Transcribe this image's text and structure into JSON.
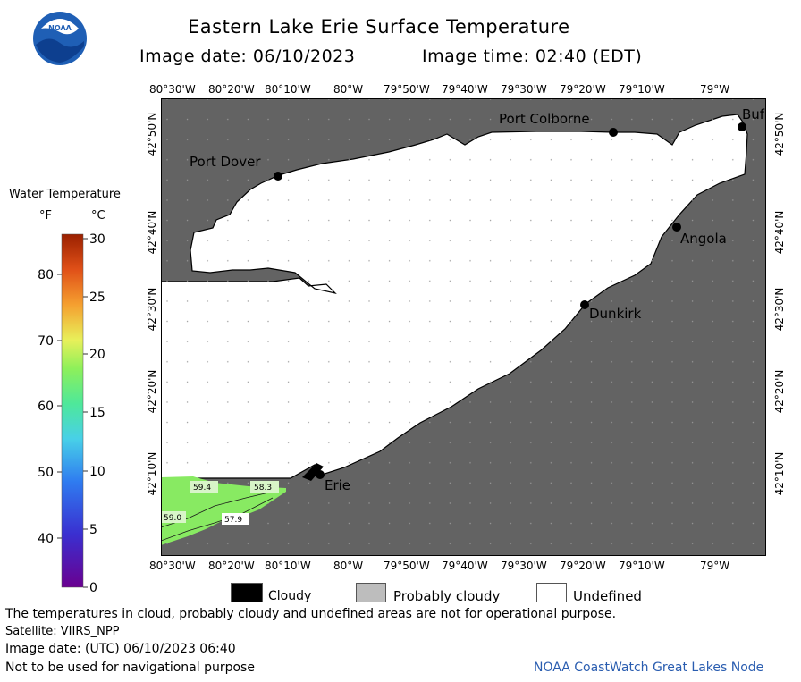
{
  "logo": {
    "text": "NOAA"
  },
  "title": "Eastern Lake Erie Surface Temperature",
  "image_date_label": "Image date: 06/10/2023",
  "image_time_label": "Image time: 02:40 (EDT)",
  "colorbar": {
    "title": "Water Temperature",
    "unit_f": "°F",
    "unit_c": "°C",
    "f_ticks": [
      "80",
      "70",
      "60",
      "50",
      "40"
    ],
    "c_ticks": [
      "30",
      "25",
      "20",
      "15",
      "10",
      "5",
      "0"
    ]
  },
  "axes": {
    "lon_ticks": [
      "80°30'W",
      "80°20'W",
      "80°10'W",
      "80°W",
      "79°50'W",
      "79°40'W",
      "79°30'W",
      "79°20'W",
      "79°10'W",
      "79°W"
    ],
    "lat_ticks": [
      "42°50'N",
      "42°40'N",
      "42°30'N",
      "42°20'N",
      "42°10'N"
    ]
  },
  "places": [
    {
      "name": "Port Dover"
    },
    {
      "name": "Port Colborne"
    },
    {
      "name": "Buf"
    },
    {
      "name": "Angola"
    },
    {
      "name": "Dunkirk"
    },
    {
      "name": "Erie"
    }
  ],
  "isotherm_labels": [
    "59.4",
    "58.3",
    "59.0",
    "57.9"
  ],
  "legend": {
    "cloudy": "Cloudy",
    "probably_cloudy": "Probably cloudy",
    "undefined": "Undefined"
  },
  "footer": {
    "disclaimer": "The temperatures in cloud, probably cloudy and undefined areas are not for operational purpose.",
    "satellite": "Satellite: VIIRS_NPP",
    "image_date_utc": "Image date: (UTC) 06/10/2023  06:40",
    "nav_warning": "Not to be used for navigational purpose",
    "credit": "NOAA CoastWatch Great Lakes Node"
  }
}
